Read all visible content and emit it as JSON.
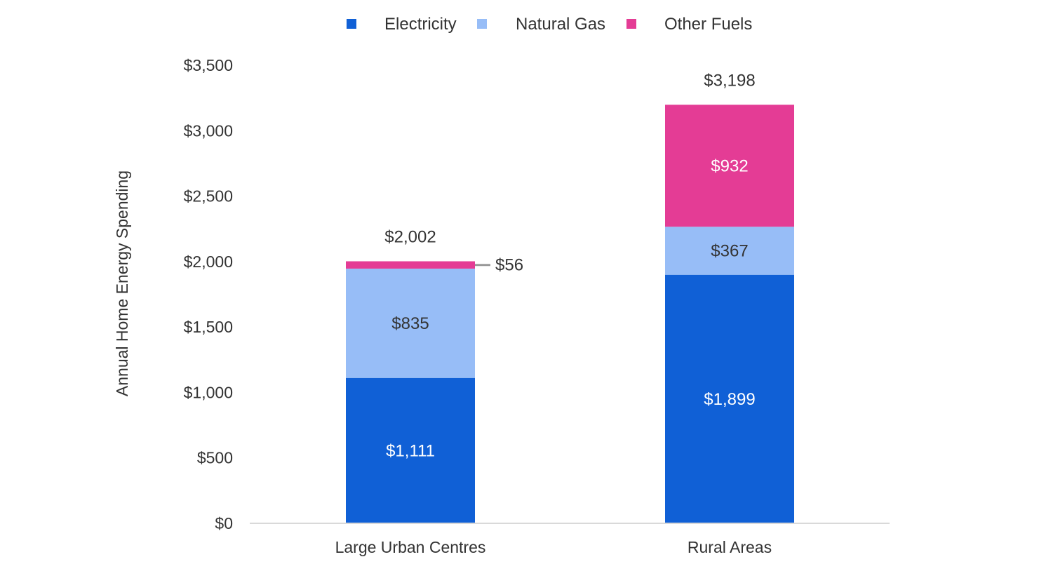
{
  "chart_data": {
    "type": "bar",
    "stacked": true,
    "title": "",
    "xlabel": "",
    "ylabel": "Annual Home Energy Spending",
    "ylim": [
      0,
      3500
    ],
    "yticks": [
      0,
      500,
      1000,
      1500,
      2000,
      2500,
      3000,
      3500
    ],
    "ytick_labels": [
      "$0",
      "$500",
      "$1,000",
      "$1,500",
      "$2,000",
      "$2,500",
      "$3,000",
      "$3,500"
    ],
    "categories": [
      "Large Urban Centres",
      "Rural Areas"
    ],
    "series": [
      {
        "name": "Electricity",
        "color": "#1060d6",
        "label_color": "#ffffff",
        "values": [
          1111,
          1899
        ],
        "labels": [
          "$1,111",
          "$1,899"
        ]
      },
      {
        "name": "Natural Gas",
        "color": "#97bdf7",
        "label_color": "#333333",
        "values": [
          835,
          367
        ],
        "labels": [
          "$835",
          "$367"
        ]
      },
      {
        "name": "Other Fuels",
        "color": "#e43c95",
        "label_color": "#ffffff",
        "values": [
          56,
          932
        ],
        "labels": [
          "$56",
          "$932"
        ]
      }
    ],
    "totals": [
      2002,
      3198
    ],
    "total_labels": [
      "$2,002",
      "$3,198"
    ],
    "grid": false,
    "legend_position": "top"
  }
}
